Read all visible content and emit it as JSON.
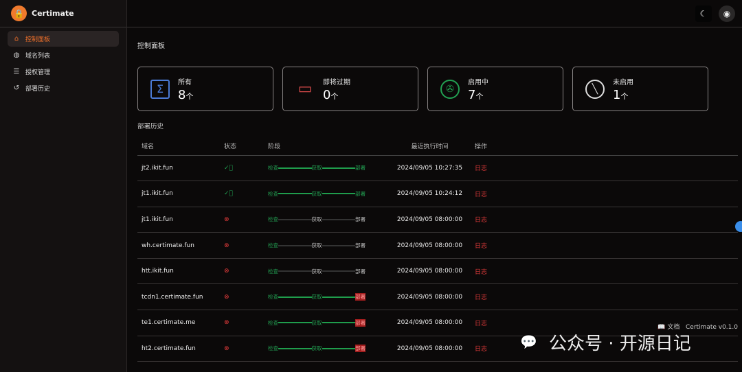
{
  "app": {
    "name": "Certimate",
    "version": "Certimate v0.1.0",
    "docs": "文档"
  },
  "sidebar": {
    "items": [
      {
        "label": "控制面板",
        "icon": "home-icon",
        "active": true
      },
      {
        "label": "域名列表",
        "icon": "globe-icon"
      },
      {
        "label": "授权管理",
        "icon": "server-icon"
      },
      {
        "label": "部署历史",
        "icon": "history-icon"
      }
    ]
  },
  "page": {
    "title": "控制面板",
    "section": "部署历史"
  },
  "cards": [
    {
      "label": "所有",
      "value": "8",
      "unit": "个",
      "icon": "sigma-icon",
      "color": "#4b7bd6"
    },
    {
      "label": "即将过期",
      "value": "0",
      "unit": "个",
      "icon": "calendar-x-icon",
      "color": "#d84a4a"
    },
    {
      "label": "启用中",
      "value": "7",
      "unit": "个",
      "icon": "aperture-icon",
      "color": "#22a052"
    },
    {
      "label": "未启用",
      "value": "1",
      "unit": "个",
      "icon": "ban-icon",
      "color": "#dddddd"
    }
  ],
  "table": {
    "headers": [
      "域名",
      "状态",
      "阶段",
      "最近执行时间",
      "操作"
    ],
    "stages": [
      "检查",
      "获取",
      "部署"
    ],
    "rows": [
      {
        "domain": "jt2.ikit.fun",
        "status": "success",
        "progress": "all-success",
        "time": "2024/09/05 10:27:35",
        "action": "日志"
      },
      {
        "domain": "jt1.ikit.fun",
        "status": "success",
        "progress": "all-success",
        "time": "2024/09/05 10:24:12",
        "action": "日志"
      },
      {
        "domain": "jt1.ikit.fun",
        "status": "failed",
        "progress": "check-only",
        "time": "2024/09/05 08:00:00",
        "action": "日志"
      },
      {
        "domain": "wh.certimate.fun",
        "status": "failed",
        "progress": "check-only",
        "time": "2024/09/05 08:00:00",
        "action": "日志"
      },
      {
        "domain": "htt.ikit.fun",
        "status": "failed",
        "progress": "check-only",
        "time": "2024/09/05 08:00:00",
        "action": "日志"
      },
      {
        "domain": "tcdn1.certimate.fun",
        "status": "failed",
        "progress": "deploy-failed",
        "time": "2024/09/05 08:00:00",
        "action": "日志"
      },
      {
        "domain": "te1.certimate.me",
        "status": "failed",
        "progress": "deploy-failed",
        "time": "2024/09/05 08:00:00",
        "action": "日志"
      },
      {
        "domain": "ht2.certimate.fun",
        "status": "failed",
        "progress": "deploy-failed",
        "time": "2024/09/05 08:00:00",
        "action": "日志"
      }
    ]
  },
  "watermark": "公众号 · 开源日记"
}
